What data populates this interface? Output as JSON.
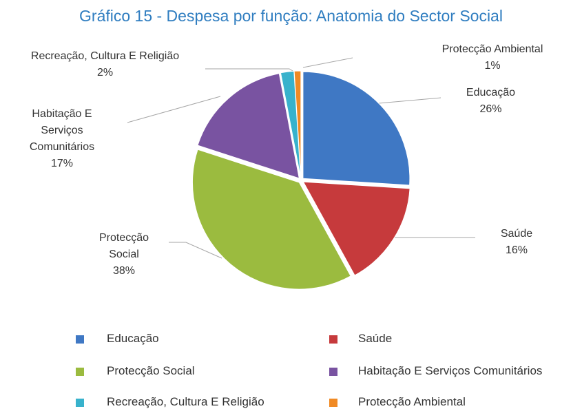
{
  "chart_data": {
    "type": "pie",
    "title": "Gráfico 15 - Despesa por função: Anatomia do Sector Social",
    "categories": [
      "Educação",
      "Saúde",
      "Protecção Social",
      "Habitação E Serviços Comunitários",
      "Recreação, Cultura E Religião",
      "Protecção Ambiental"
    ],
    "values": [
      26,
      16,
      38,
      17,
      2,
      1
    ],
    "value_labels": [
      "26%",
      "16%",
      "38%",
      "17%",
      "2%",
      "1%"
    ],
    "colors": [
      "#3f78c4",
      "#c63a3c",
      "#9bbb3f",
      "#7953a1",
      "#38b2cc",
      "#f08a24"
    ],
    "legend": "bottom"
  }
}
